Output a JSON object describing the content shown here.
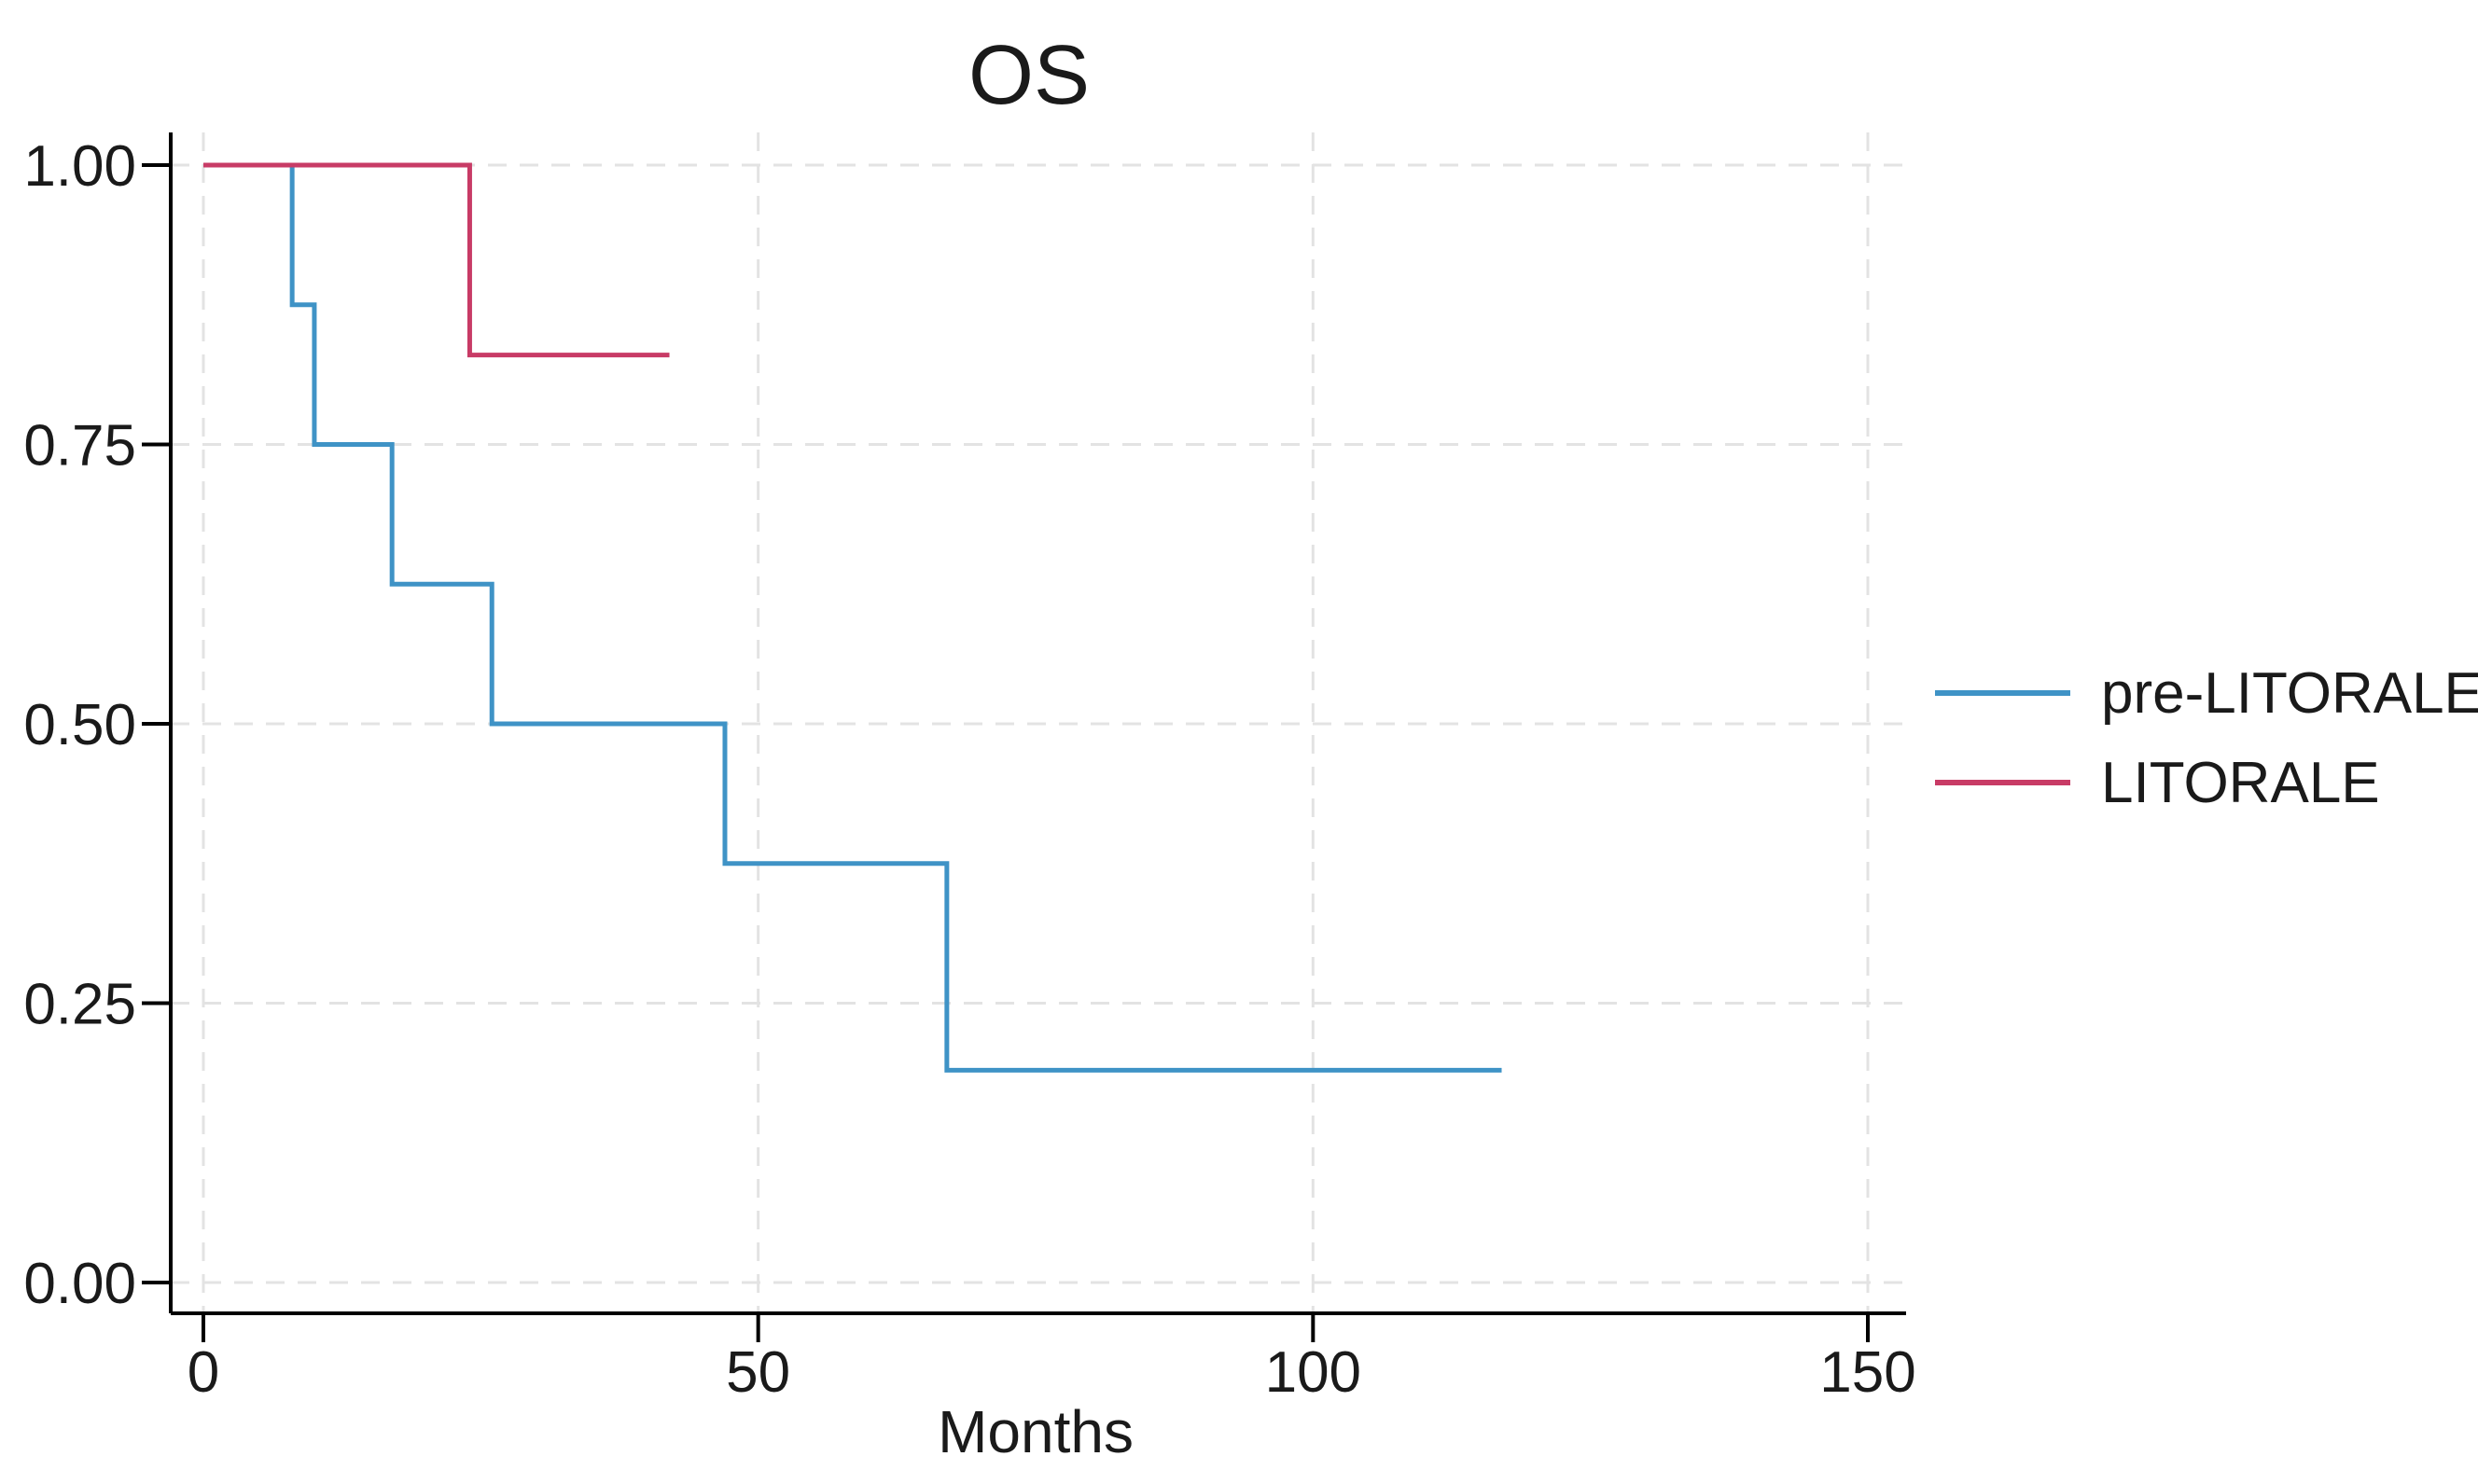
{
  "figure_title": "OS",
  "x_axis_label": "Months",
  "background_color": "#ffffff",
  "axis_color": "#000000",
  "gridline_color": "#e3e3e3",
  "text_color": "#1a1a1a",
  "legend": {
    "items": [
      {
        "label": "pre-LITORALE"
      },
      {
        "label": "LITORALE"
      }
    ]
  },
  "chart_data": {
    "type": "line",
    "subtype": "kaplan-meier-survival-step",
    "title": "OS",
    "xlabel": "Months",
    "ylabel": "",
    "xlim": [
      0,
      153
    ],
    "ylim": [
      0,
      1
    ],
    "x_tick_values": [
      0,
      50,
      100,
      150
    ],
    "x_tick_labels": [
      "0",
      "50",
      "100",
      "150"
    ],
    "y_tick_values": [
      0,
      0.25,
      0.5,
      0.75,
      1
    ],
    "y_tick_labels": [
      "0.00",
      "0.25",
      "0.50",
      "0.75",
      "1.00"
    ],
    "grid": "light dashed gridlines at every x and y tick",
    "legend_position": "right-center",
    "series": [
      {
        "name": "pre-LITORALE",
        "color": "#3f93c6",
        "points": [
          [
            0,
            1.0
          ],
          [
            8,
            1.0
          ],
          [
            8,
            0.875
          ],
          [
            10,
            0.875
          ],
          [
            10,
            0.75
          ],
          [
            17,
            0.75
          ],
          [
            17,
            0.625
          ],
          [
            26,
            0.625
          ],
          [
            26,
            0.5
          ],
          [
            47,
            0.5
          ],
          [
            47,
            0.375
          ],
          [
            67,
            0.375
          ],
          [
            67,
            0.19
          ],
          [
            117,
            0.19
          ]
        ]
      },
      {
        "name": "LITORALE",
        "color": "#c83b66",
        "points": [
          [
            0,
            1.0
          ],
          [
            24,
            1.0
          ],
          [
            24,
            0.83
          ],
          [
            42,
            0.83
          ]
        ]
      }
    ]
  }
}
